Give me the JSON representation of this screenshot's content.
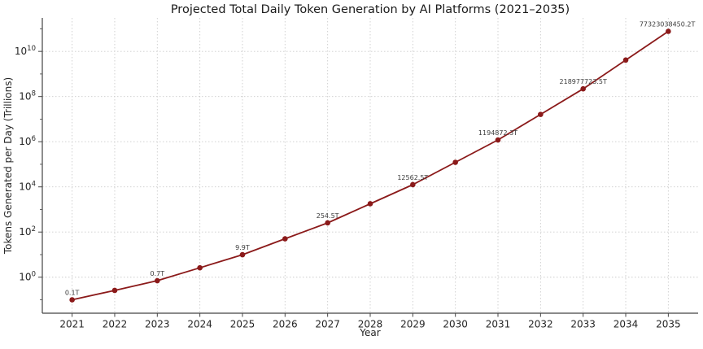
{
  "figure": {
    "background": "#ffffff"
  },
  "chart_data": {
    "type": "line",
    "title": "Projected Total Daily Token Generation by AI Platforms (2021–2035)",
    "xlabel": "Year",
    "ylabel": "Tokens Generated per Day (Trillions)",
    "yscale": "log",
    "x": [
      2021,
      2022,
      2023,
      2024,
      2025,
      2026,
      2027,
      2028,
      2029,
      2030,
      2031,
      2032,
      2033,
      2034,
      2035
    ],
    "values": [
      0.1,
      0.26,
      0.7,
      2.6,
      9.9,
      50.2,
      254.5,
      1788,
      12562.5,
      122500,
      1194872.3,
      16200000,
      218977723.5,
      4115000000,
      77323038450.2
    ],
    "point_labels": [
      "0.1T",
      "",
      "0.7T",
      "",
      "9.9T",
      "",
      "254.5T",
      "",
      "12562.5T",
      "",
      "1194872.3T",
      "",
      "218977723.5T",
      "",
      "77323038450.2T"
    ],
    "xticks": [
      2021,
      2022,
      2023,
      2024,
      2025,
      2026,
      2027,
      2028,
      2029,
      2030,
      2031,
      2032,
      2033,
      2034,
      2035
    ],
    "ytick_exponents": [
      0,
      2,
      4,
      6,
      8,
      10
    ],
    "grid": true,
    "legend": "none",
    "colors": {
      "line": "#8B1A1A",
      "marker": "#8B1A1A",
      "grid": "#cccccc",
      "axis": "#444444",
      "tick_label": "#262626",
      "annotation": "#3a3a3a",
      "title": "#1a1a1a"
    }
  }
}
